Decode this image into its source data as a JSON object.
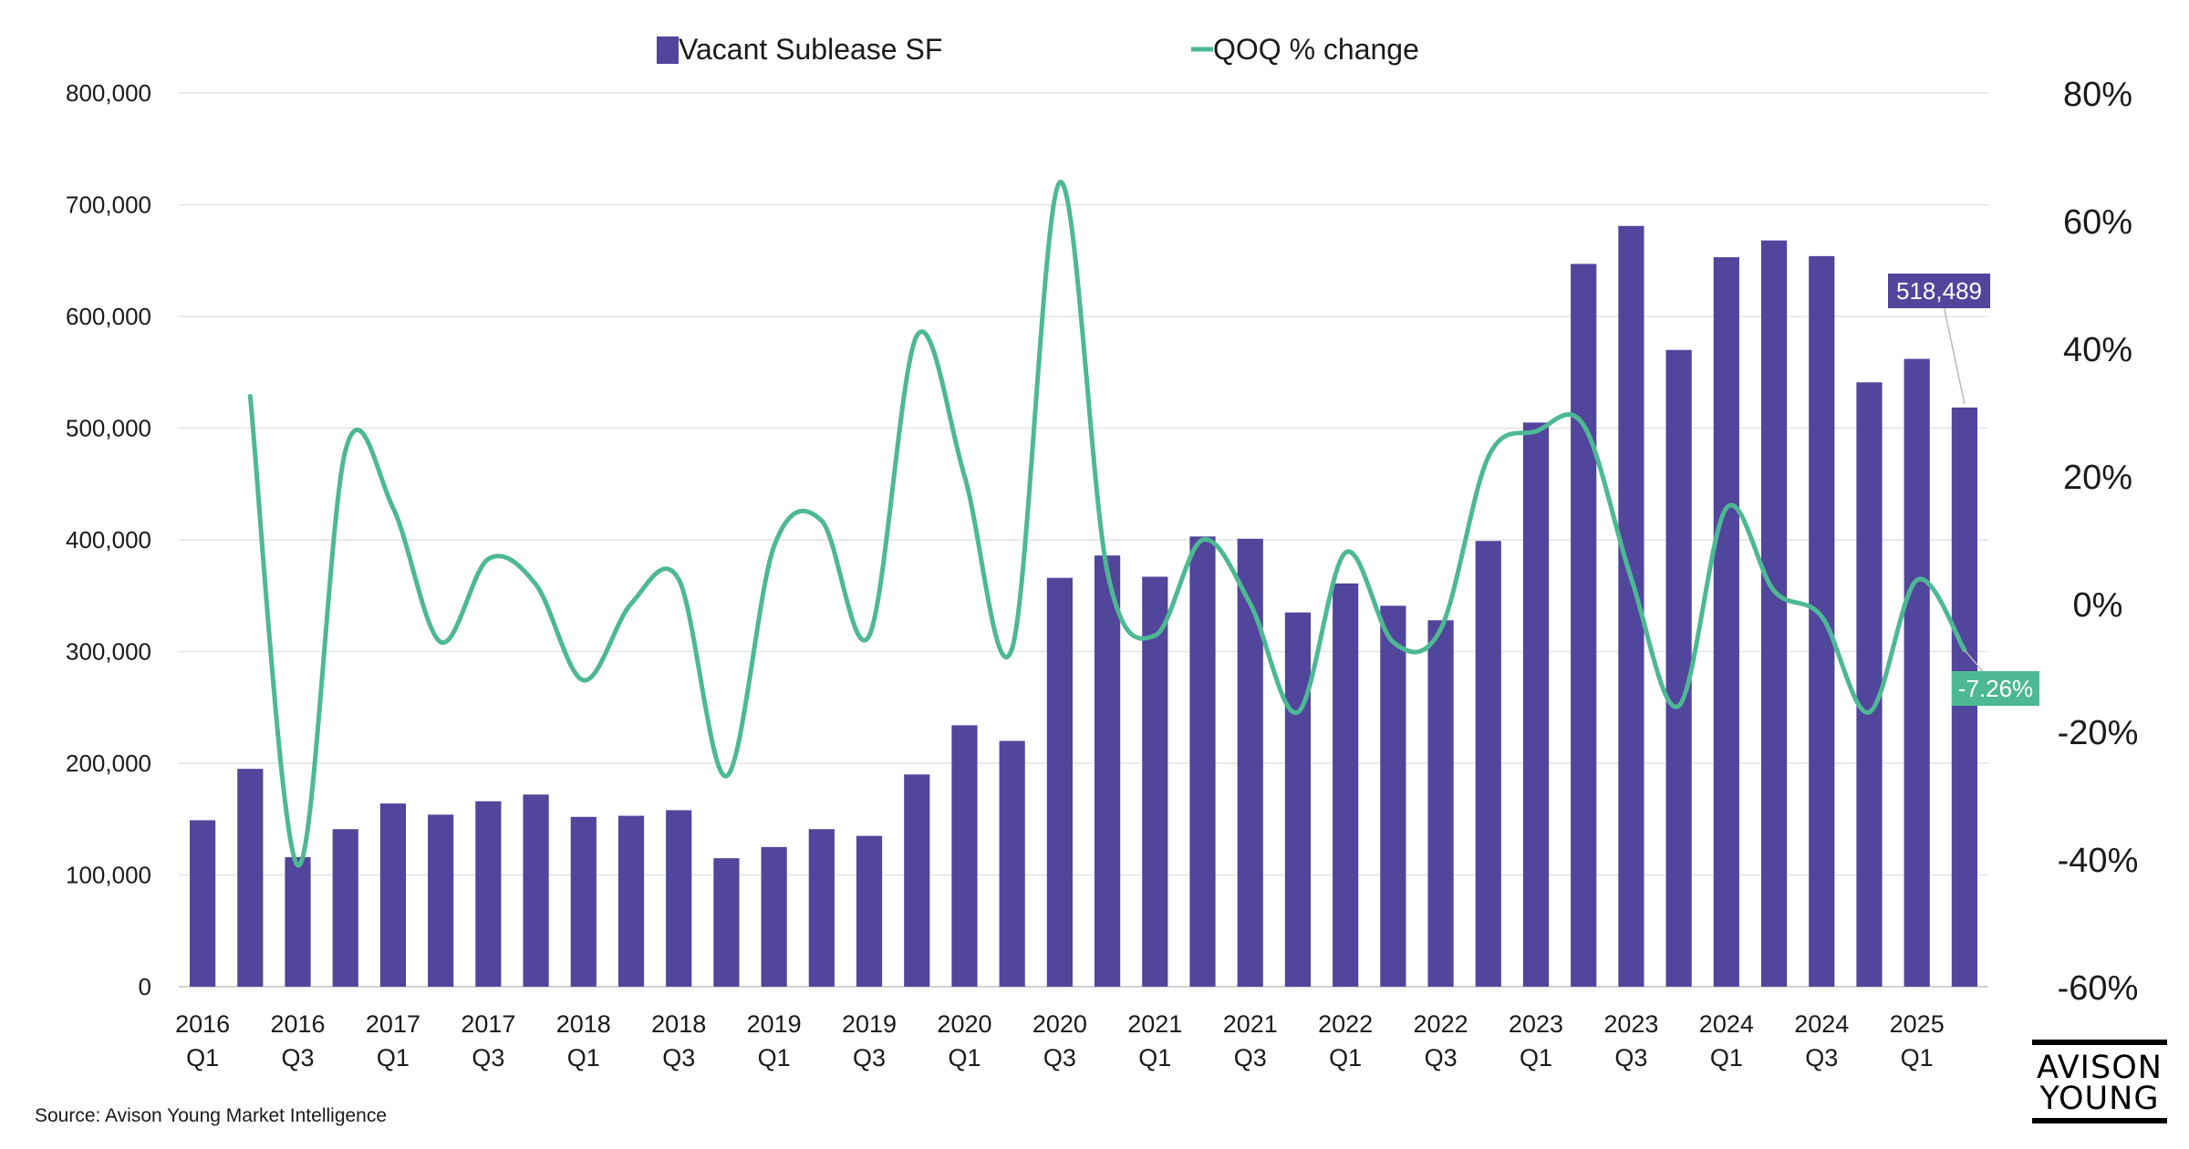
{
  "chart_data": {
    "type": "bar",
    "legend": {
      "position": "top-center"
    },
    "series": [
      {
        "name": "Vacant Sublease SF",
        "type": "bar",
        "axis": "left",
        "color": "#51459c",
        "values": [
          149000,
          195000,
          116000,
          141000,
          164000,
          154000,
          166000,
          172000,
          152000,
          153000,
          158000,
          115000,
          125000,
          141000,
          135000,
          190000,
          234000,
          220000,
          366000,
          386000,
          367000,
          403000,
          401000,
          335000,
          361000,
          341000,
          328000,
          399000,
          505000,
          647000,
          681000,
          570000,
          653000,
          668000,
          654000,
          541000,
          562000,
          518489
        ]
      },
      {
        "name": "QOQ % change",
        "type": "line",
        "axis": "right",
        "color": "#4db894",
        "values": [
          null,
          32.5,
          -41,
          24,
          15,
          -6,
          7,
          3,
          -12,
          0,
          3.8,
          -27,
          9,
          13,
          -5,
          42,
          20,
          -7,
          66,
          5,
          -5,
          10,
          0,
          -17,
          8,
          -6,
          -4,
          23,
          27,
          28,
          4,
          -16,
          15,
          2,
          -2,
          -17,
          3.7,
          -7.26
        ]
      }
    ],
    "x_ticks": [
      {
        "year": "2016",
        "q": "Q1"
      },
      {
        "year": "2016",
        "q": "Q3"
      },
      {
        "year": "2017",
        "q": "Q1"
      },
      {
        "year": "2017",
        "q": "Q3"
      },
      {
        "year": "2018",
        "q": "Q1"
      },
      {
        "year": "2018",
        "q": "Q3"
      },
      {
        "year": "2019",
        "q": "Q1"
      },
      {
        "year": "2019",
        "q": "Q3"
      },
      {
        "year": "2020",
        "q": "Q1"
      },
      {
        "year": "2020",
        "q": "Q3"
      },
      {
        "year": "2021",
        "q": "Q1"
      },
      {
        "year": "2021",
        "q": "Q3"
      },
      {
        "year": "2022",
        "q": "Q1"
      },
      {
        "year": "2022",
        "q": "Q3"
      },
      {
        "year": "2023",
        "q": "Q1"
      },
      {
        "year": "2023",
        "q": "Q3"
      },
      {
        "year": "2024",
        "q": "Q1"
      },
      {
        "year": "2024",
        "q": "Q3"
      },
      {
        "year": "2025",
        "q": "Q1"
      }
    ],
    "y_left": {
      "min": 0,
      "max": 800000,
      "ticks": [
        "0",
        "100,000",
        "200,000",
        "300,000",
        "400,000",
        "500,000",
        "600,000",
        "700,000",
        "800,000"
      ]
    },
    "y_right": {
      "min": -60,
      "max": 80,
      "ticks": [
        "-60%",
        "-40%",
        "-20%",
        "0%",
        "20%",
        "40%",
        "60%",
        "80%"
      ]
    },
    "annotations": {
      "bar_label": "518,489",
      "line_label": "-7.26%"
    },
    "grid": true
  },
  "source_text": "Source: Avison Young Market Intelligence",
  "logo": {
    "line1": "AVISON",
    "line2": "YOUNG"
  }
}
